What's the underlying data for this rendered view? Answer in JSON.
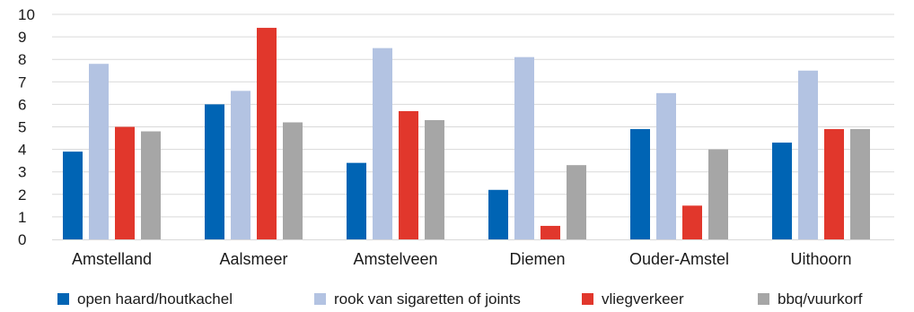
{
  "chart_data": {
    "type": "bar",
    "categories": [
      "Amstelland",
      "Aalsmeer",
      "Amstelveen",
      "Diemen",
      "Ouder-Amstel",
      "Uithoorn"
    ],
    "series": [
      {
        "name": "open haard/houtkachel",
        "color": "#0064b4",
        "values": [
          3.9,
          6.0,
          3.4,
          2.2,
          4.9,
          4.3
        ]
      },
      {
        "name": "rook van sigaretten of joints",
        "color": "#b3c3e2",
        "values": [
          7.8,
          6.6,
          8.5,
          8.1,
          6.5,
          7.5
        ]
      },
      {
        "name": "vliegverkeer",
        "color": "#e1372c",
        "values": [
          5.0,
          9.4,
          5.7,
          0.6,
          1.5,
          4.9
        ]
      },
      {
        "name": "bbq/vuurkorf",
        "color": "#a6a6a6",
        "values": [
          4.8,
          5.2,
          5.3,
          3.3,
          4.0,
          4.9
        ]
      }
    ],
    "yticks": [
      "0",
      "1",
      "2",
      "3",
      "4",
      "5",
      "6",
      "7",
      "8",
      "9",
      "10"
    ],
    "ylim": [
      0,
      10
    ],
    "grid": true,
    "legend": "bottom"
  }
}
